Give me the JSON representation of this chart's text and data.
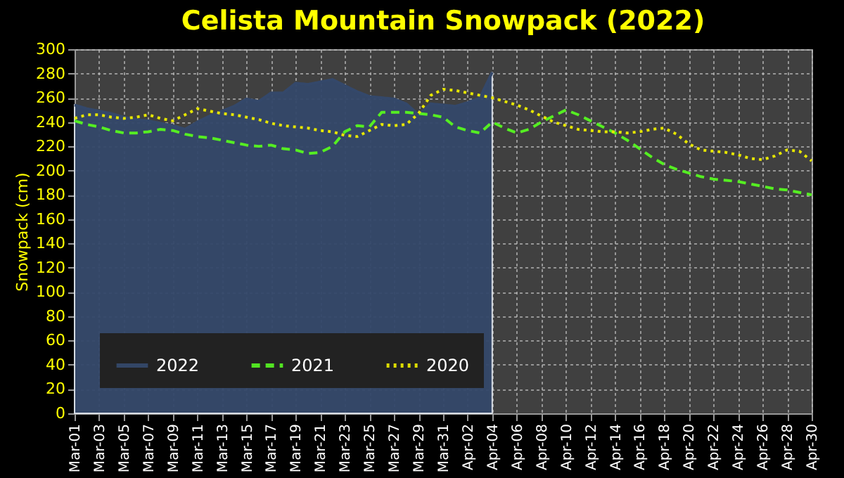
{
  "chart_data": {
    "type": "line",
    "title": "Celista Mountain Snowpack (2022)",
    "ylabel": "Snowpack (cm)",
    "categories": [
      "Mar-01",
      null,
      "Mar-03",
      null,
      "Mar-05",
      null,
      "Mar-07",
      null,
      "Mar-09",
      null,
      "Mar-11",
      null,
      "Mar-13",
      null,
      "Mar-15",
      null,
      "Mar-17",
      null,
      "Mar-19",
      null,
      "Mar-21",
      null,
      "Mar-23",
      null,
      "Mar-25",
      null,
      "Mar-27",
      null,
      "Mar-29",
      null,
      "Mar-31",
      null,
      "Apr-02",
      null,
      "Apr-04",
      null,
      "Apr-06",
      null,
      "Apr-08",
      null,
      "Apr-10",
      null,
      "Apr-12",
      null,
      "Apr-14",
      null,
      "Apr-16",
      null,
      "Apr-18",
      null,
      "Apr-20",
      null,
      "Apr-22",
      null,
      "Apr-24",
      null,
      "Apr-26",
      null,
      "Apr-28",
      null,
      "Apr-30"
    ],
    "series": [
      {
        "name": "2022",
        "type": "area",
        "color": "#34486a",
        "line_style": "solid",
        "values": [
          254,
          251,
          249,
          247,
          244,
          242,
          241,
          239,
          237,
          234,
          240,
          245,
          249,
          253,
          259,
          257,
          264,
          264,
          272,
          271,
          273,
          275,
          270,
          265,
          261,
          260,
          259,
          255,
          246,
          255,
          254,
          253,
          256,
          260,
          281,
          null,
          null,
          null,
          null,
          null,
          null,
          null,
          null,
          null,
          null,
          null,
          null,
          null,
          null,
          null,
          null,
          null,
          null,
          null,
          null,
          null,
          null,
          null,
          null,
          null,
          null
        ]
      },
      {
        "name": "2021",
        "color": "#55ee22",
        "line_style": "dashed",
        "values": [
          241,
          238,
          236,
          233,
          231,
          231,
          232,
          234,
          233,
          230,
          228,
          227,
          225,
          223,
          221,
          220,
          221,
          218,
          217,
          214,
          215,
          220,
          232,
          237,
          236,
          248,
          248,
          248,
          247,
          246,
          244,
          236,
          233,
          231,
          240,
          235,
          231,
          234,
          240,
          245,
          250,
          246,
          241,
          236,
          231,
          225,
          218,
          211,
          205,
          201,
          198,
          195,
          193,
          192,
          191,
          189,
          187,
          185,
          184,
          182,
          180
        ]
      },
      {
        "name": "2020",
        "color": "#e6e600",
        "line_style": "dotted",
        "values": [
          243,
          246,
          246,
          244,
          243,
          244,
          246,
          243,
          241,
          246,
          251,
          249,
          247,
          246,
          244,
          242,
          239,
          237,
          236,
          235,
          233,
          232,
          229,
          228,
          233,
          238,
          237,
          238,
          247,
          262,
          267,
          266,
          264,
          262,
          260,
          257,
          254,
          250,
          245,
          240,
          237,
          234,
          233,
          232,
          232,
          231,
          232,
          234,
          235,
          230,
          222,
          217,
          216,
          215,
          213,
          210,
          209,
          212,
          217,
          216,
          208
        ]
      }
    ],
    "ylim": [
      0,
      300
    ],
    "yticks": [
      0,
      20,
      40,
      60,
      80,
      100,
      120,
      140,
      160,
      180,
      200,
      220,
      240,
      260,
      280,
      300
    ],
    "grid": true,
    "legend": "bottom left"
  }
}
